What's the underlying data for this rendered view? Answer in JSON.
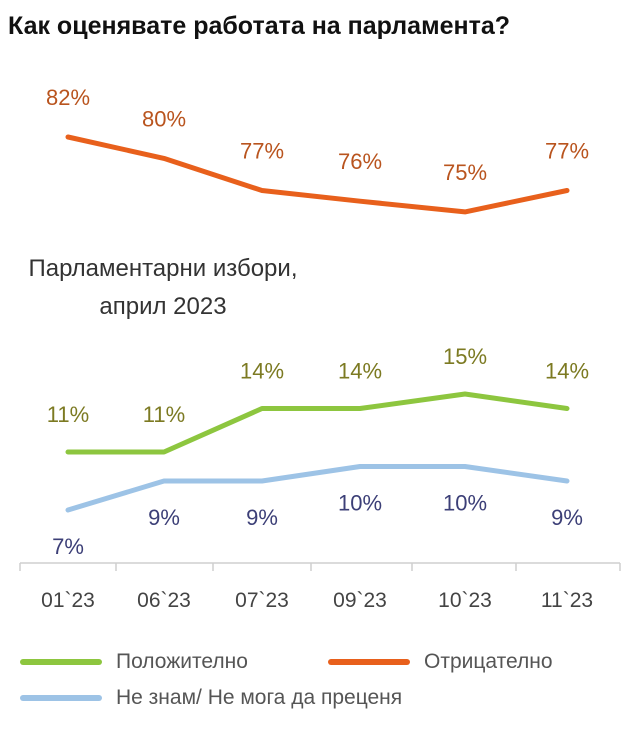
{
  "chart_data": {
    "type": "line",
    "title": "Как оценявате работата на парламента?",
    "categories": [
      "01`23",
      "06`23",
      "07`23",
      "09`23",
      "10`23",
      "11`23"
    ],
    "series": [
      {
        "name": "Отрицателно",
        "color": "#E8601C",
        "label_color": "#B9541E",
        "values": [
          82,
          80,
          77,
          76,
          75,
          77
        ],
        "labels": [
          "82%",
          "80%",
          "77%",
          "76%",
          "75%",
          "77%"
        ]
      },
      {
        "name": "Положително",
        "color": "#8DC63F",
        "label_color": "#7C7A22",
        "values": [
          11,
          11,
          14,
          14,
          15,
          14
        ],
        "labels": [
          "11%",
          "11%",
          "14%",
          "14%",
          "15%",
          "14%"
        ]
      },
      {
        "name": "Не знам/ Не мога да преценя",
        "color": "#9DC3E6",
        "label_color": "#3C3F77",
        "values": [
          7,
          9,
          9,
          10,
          10,
          9
        ],
        "labels": [
          "7%",
          "9%",
          "9%",
          "10%",
          "10%",
          "9%"
        ]
      }
    ],
    "annotation": [
      "Парламентарни избори,",
      "април 2023"
    ],
    "legend_position": "bottom",
    "grid": false
  },
  "legend": {
    "positive": "Положително",
    "negative": "Отрицателно",
    "dont_know": "Не знам/ Не мога да преценя"
  }
}
